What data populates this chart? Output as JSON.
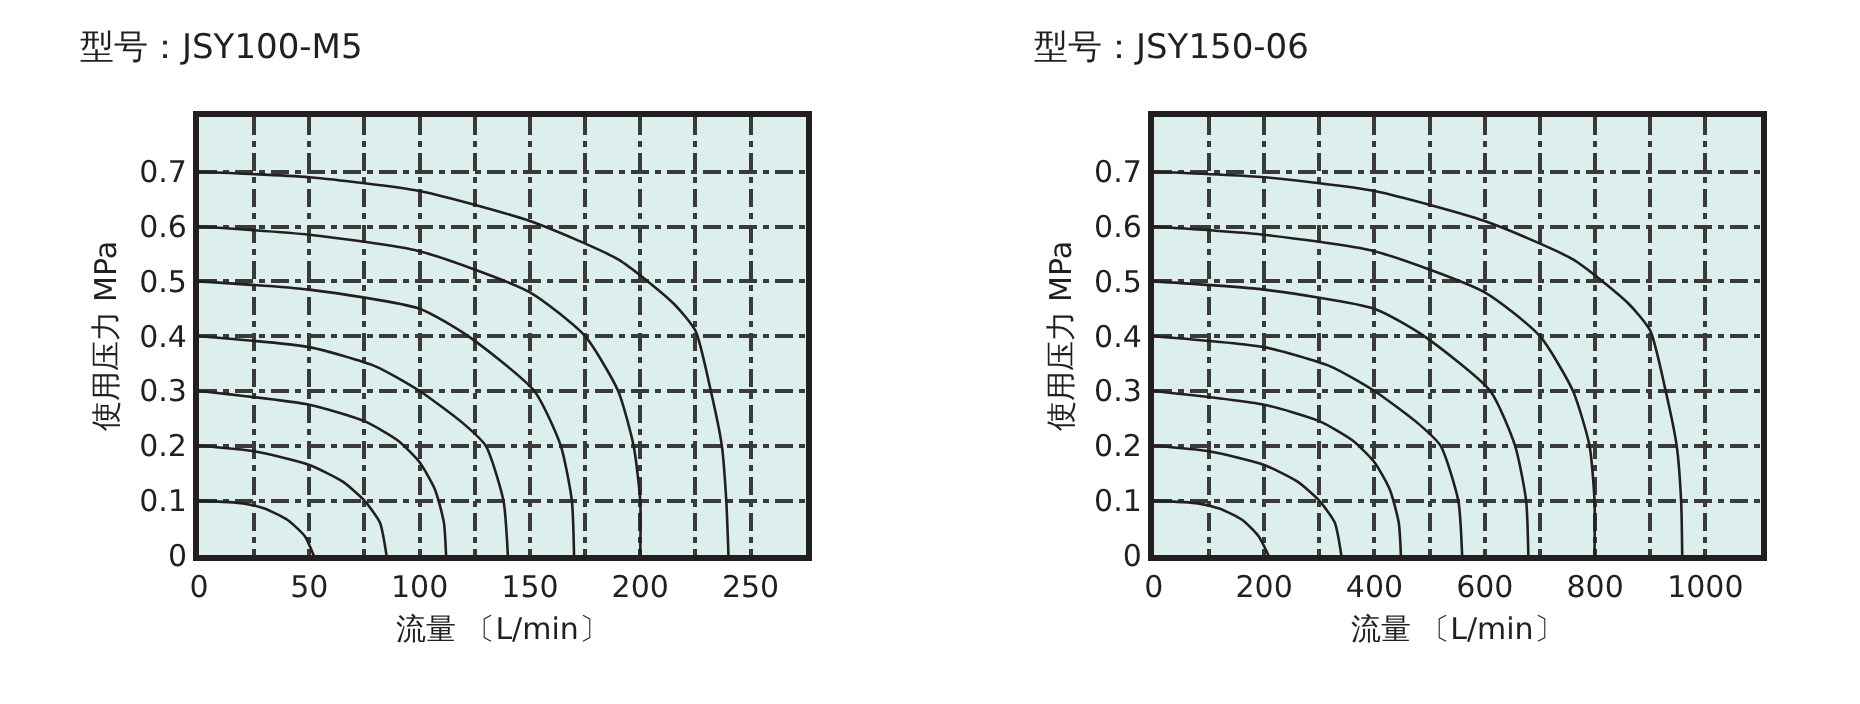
{
  "chart_data": [
    {
      "type": "line",
      "title": "型号：JSY100-M5",
      "xlabel": "流量 〔L/min〕",
      "ylabel": "使用压力 MPa",
      "xlim": [
        0,
        275
      ],
      "ylim": [
        0,
        0.8
      ],
      "xticks": [
        0,
        {
          "value": 25,
          "label": null
        },
        50,
        {
          "value": 75,
          "label": null
        },
        100,
        {
          "value": 125,
          "label": null
        },
        150,
        {
          "value": 175,
          "label": null
        },
        200,
        {
          "value": 225,
          "label": null
        },
        250
      ],
      "yticks": [
        0,
        0.1,
        0.2,
        0.3,
        0.4,
        0.5,
        0.6,
        0.7
      ],
      "grid": true,
      "marker": "none",
      "line_style": "solid",
      "series": [
        {
          "color": "#231f20",
          "x": [
            0,
            20,
            30,
            40,
            48,
            52
          ],
          "values": [
            0.1,
            0.095,
            0.085,
            0.065,
            0.035,
            0
          ]
        },
        {
          "color": "#231f20",
          "x": [
            0,
            25,
            50,
            65,
            75,
            82,
            85
          ],
          "values": [
            0.2,
            0.19,
            0.165,
            0.135,
            0.1,
            0.06,
            0
          ]
        },
        {
          "color": "#231f20",
          "x": [
            0,
            50,
            75,
            90,
            100,
            107,
            111,
            112
          ],
          "values": [
            0.3,
            0.275,
            0.245,
            0.21,
            0.17,
            0.12,
            0.06,
            0
          ]
        },
        {
          "color": "#231f20",
          "x": [
            0,
            50,
            80,
            100,
            120,
            130,
            138,
            140
          ],
          "values": [
            0.4,
            0.38,
            0.345,
            0.3,
            0.24,
            0.2,
            0.1,
            0
          ]
        },
        {
          "color": "#231f20",
          "x": [
            0,
            50,
            100,
            122,
            152,
            164,
            169,
            170
          ],
          "values": [
            0.5,
            0.485,
            0.45,
            0.4,
            0.3,
            0.2,
            0.1,
            0
          ]
        },
        {
          "color": "#231f20",
          "x": [
            0,
            50,
            100,
            150,
            175,
            190,
            197,
            200,
            200
          ],
          "values": [
            0.6,
            0.585,
            0.555,
            0.48,
            0.4,
            0.3,
            0.2,
            0.1,
            0
          ]
        },
        {
          "color": "#231f20",
          "x": [
            0,
            50,
            100,
            150,
            190,
            215,
            225,
            232,
            237,
            239,
            240
          ],
          "values": [
            0.7,
            0.69,
            0.665,
            0.61,
            0.54,
            0.46,
            0.41,
            0.3,
            0.2,
            0.1,
            0
          ]
        }
      ]
    },
    {
      "type": "line",
      "title": "型号：JSY150-06",
      "xlabel": "流量 〔L/min〕",
      "ylabel": "使用压力 MPa",
      "xlim": [
        0,
        1100
      ],
      "ylim": [
        0,
        0.8
      ],
      "xticks": [
        0,
        {
          "value": 100,
          "label": null
        },
        200,
        {
          "value": 300,
          "label": null
        },
        400,
        {
          "value": 500,
          "label": null
        },
        600,
        {
          "value": 700,
          "label": null
        },
        800,
        {
          "value": 900,
          "label": null
        },
        1000
      ],
      "yticks": [
        0,
        0.1,
        0.2,
        0.3,
        0.4,
        0.5,
        0.6,
        0.7
      ],
      "grid": true,
      "marker": "none",
      "line_style": "solid",
      "series": [
        {
          "color": "#231f20",
          "x": [
            0,
            80,
            120,
            160,
            190,
            208
          ],
          "values": [
            0.1,
            0.095,
            0.085,
            0.065,
            0.035,
            0
          ]
        },
        {
          "color": "#231f20",
          "x": [
            0,
            100,
            200,
            260,
            300,
            328,
            340
          ],
          "values": [
            0.2,
            0.19,
            0.165,
            0.135,
            0.1,
            0.06,
            0
          ]
        },
        {
          "color": "#231f20",
          "x": [
            0,
            200,
            300,
            360,
            400,
            428,
            444,
            448
          ],
          "values": [
            0.3,
            0.275,
            0.245,
            0.21,
            0.17,
            0.12,
            0.06,
            0
          ]
        },
        {
          "color": "#231f20",
          "x": [
            0,
            200,
            320,
            400,
            480,
            520,
            552,
            559
          ],
          "values": [
            0.4,
            0.38,
            0.345,
            0.3,
            0.24,
            0.2,
            0.1,
            0
          ]
        },
        {
          "color": "#231f20",
          "x": [
            0,
            200,
            400,
            490,
            610,
            655,
            675,
            679
          ],
          "values": [
            0.5,
            0.485,
            0.45,
            0.4,
            0.3,
            0.2,
            0.1,
            0
          ]
        },
        {
          "color": "#231f20",
          "x": [
            0,
            200,
            400,
            600,
            700,
            760,
            790,
            799,
            799
          ],
          "values": [
            0.6,
            0.585,
            0.555,
            0.48,
            0.4,
            0.3,
            0.2,
            0.1,
            0
          ]
        },
        {
          "color": "#231f20",
          "x": [
            0,
            200,
            400,
            600,
            760,
            860,
            900,
            928,
            948,
            956,
            958
          ],
          "values": [
            0.7,
            0.69,
            0.665,
            0.61,
            0.54,
            0.46,
            0.41,
            0.3,
            0.2,
            0.1,
            0
          ]
        }
      ]
    }
  ]
}
